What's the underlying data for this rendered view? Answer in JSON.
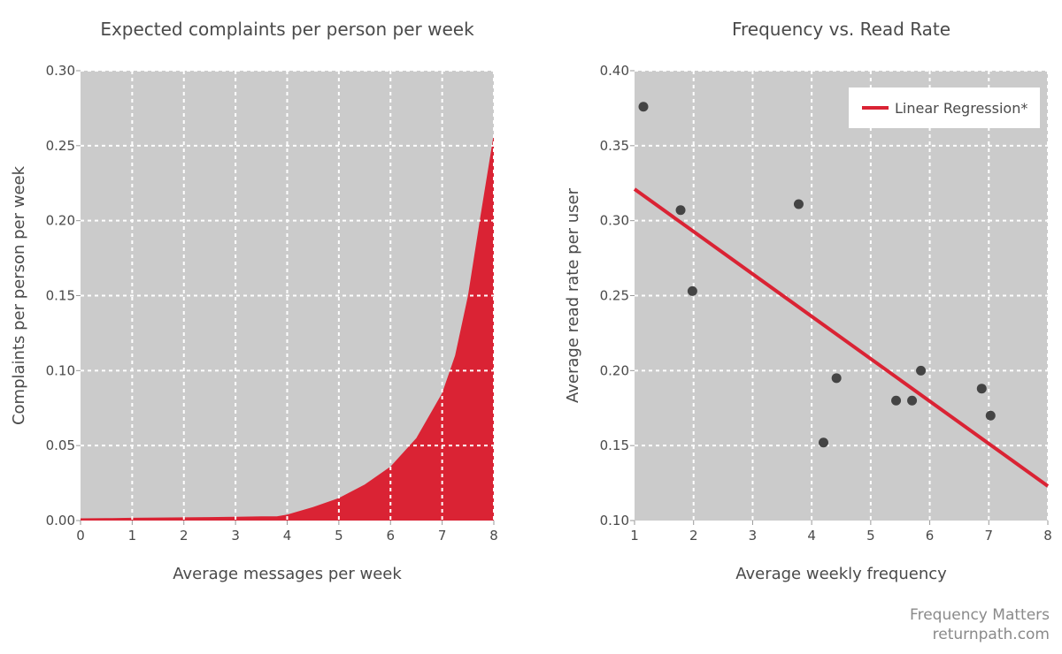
{
  "footer": {
    "title": "Frequency Matters",
    "url": "returnpath.com"
  },
  "colors": {
    "plot_bg": "#cbcbcb",
    "area_fill": "#da2334",
    "regression_line": "#da2334",
    "points": "#444444",
    "grid": "#ffffff",
    "text": "#4a4a4a"
  },
  "chart_data": [
    {
      "type": "area",
      "title": "Expected complaints per person per week",
      "xlabel": "Average messages per week",
      "ylabel": "Complaints per person per week",
      "xlim": [
        0,
        8
      ],
      "ylim": [
        0,
        0.3
      ],
      "x_ticks": [
        "0",
        "1",
        "2",
        "3",
        "4",
        "5",
        "6",
        "7",
        "8"
      ],
      "y_ticks": [
        "0.00",
        "0.05",
        "0.10",
        "0.15",
        "0.20",
        "0.25",
        "0.30"
      ],
      "grid": true,
      "x": [
        0,
        0.5,
        1,
        1.5,
        2,
        2.5,
        3,
        3.5,
        3.8,
        4,
        4.5,
        5,
        5.5,
        6,
        6.5,
        7,
        7.25,
        7.5,
        7.75,
        8
      ],
      "y": [
        0.0015,
        0.0016,
        0.0018,
        0.002,
        0.0021,
        0.0023,
        0.0025,
        0.0028,
        0.0028,
        0.004,
        0.009,
        0.015,
        0.024,
        0.036,
        0.055,
        0.085,
        0.11,
        0.15,
        0.205,
        0.258
      ]
    },
    {
      "type": "scatter",
      "title": "Frequency vs. Read Rate",
      "xlabel": "Average weekly frequency",
      "ylabel": "Average read rate per user",
      "xlim": [
        1,
        8
      ],
      "ylim": [
        0.1,
        0.4
      ],
      "x_ticks": [
        "1",
        "2",
        "3",
        "4",
        "5",
        "6",
        "7",
        "8"
      ],
      "y_ticks": [
        "0.10",
        "0.15",
        "0.20",
        "0.25",
        "0.30",
        "0.35",
        "0.40"
      ],
      "grid": true,
      "legend": {
        "position": "top-right",
        "entries": [
          "Linear Regression*"
        ]
      },
      "points": [
        {
          "x": 1.15,
          "y": 0.376
        },
        {
          "x": 1.78,
          "y": 0.307
        },
        {
          "x": 1.98,
          "y": 0.253
        },
        {
          "x": 3.78,
          "y": 0.311
        },
        {
          "x": 4.2,
          "y": 0.152
        },
        {
          "x": 4.42,
          "y": 0.195
        },
        {
          "x": 5.43,
          "y": 0.18
        },
        {
          "x": 5.7,
          "y": 0.18
        },
        {
          "x": 5.85,
          "y": 0.2
        },
        {
          "x": 6.88,
          "y": 0.188
        },
        {
          "x": 7.03,
          "y": 0.17
        }
      ],
      "regression": {
        "x": [
          1,
          8
        ],
        "y": [
          0.321,
          0.123
        ]
      }
    }
  ]
}
